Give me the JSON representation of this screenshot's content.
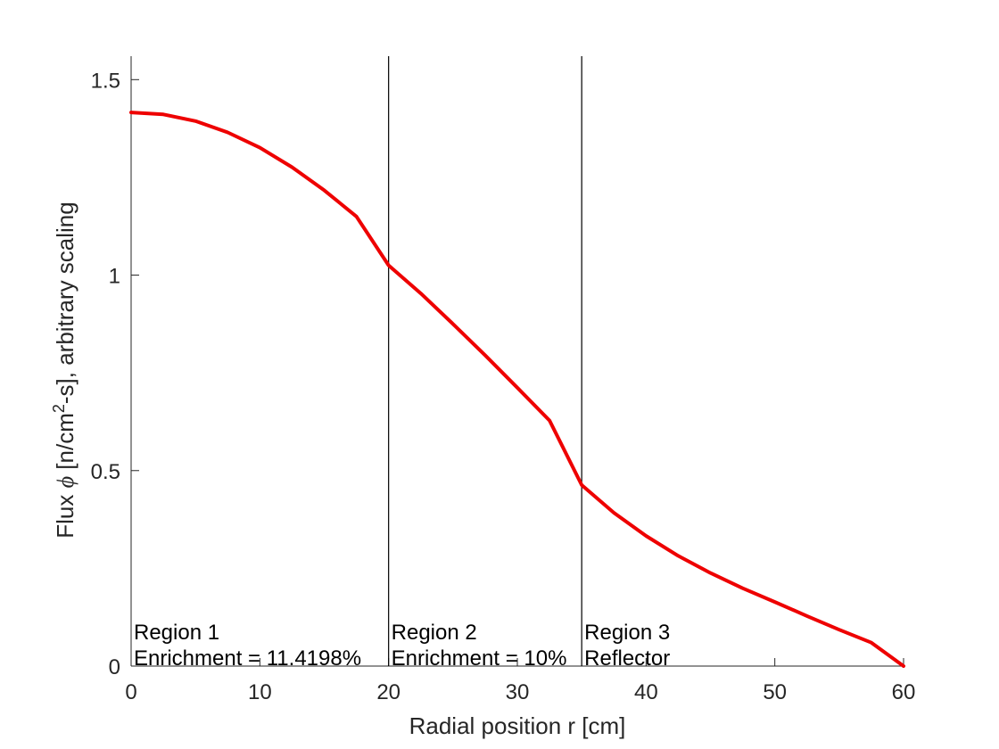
{
  "chart_data": {
    "type": "line",
    "xlabel": "Radial position r [cm]",
    "ylabel_parts": {
      "pre": "Flux ",
      "symbol": "ϕ",
      "mid": " [n/cm",
      "sup": "2",
      "post": "-s], arbitrary scaling"
    },
    "xlim": [
      0,
      60
    ],
    "ylim": [
      0,
      1.56
    ],
    "x_ticks": [
      0,
      10,
      20,
      30,
      40,
      50,
      60
    ],
    "x_tick_labels": [
      "0",
      "10",
      "20",
      "30",
      "40",
      "50",
      "60"
    ],
    "y_ticks": [
      0,
      0.5,
      1,
      1.5
    ],
    "y_tick_labels": [
      "0",
      "0.5",
      "1",
      "1.5"
    ],
    "grid": false,
    "series": [
      {
        "color": "#ee0000",
        "points": [
          [
            0,
            1.416
          ],
          [
            2.5,
            1.411
          ],
          [
            5,
            1.394
          ],
          [
            7.5,
            1.365
          ],
          [
            10,
            1.326
          ],
          [
            12.5,
            1.276
          ],
          [
            15,
            1.217
          ],
          [
            17.5,
            1.15
          ],
          [
            20,
            1.025
          ],
          [
            22.5,
            0.953
          ],
          [
            25,
            0.875
          ],
          [
            27.5,
            0.795
          ],
          [
            30,
            0.712
          ],
          [
            32.5,
            0.628
          ],
          [
            35,
            0.463
          ],
          [
            37.5,
            0.392
          ],
          [
            40,
            0.333
          ],
          [
            42.5,
            0.282
          ],
          [
            45,
            0.238
          ],
          [
            47.5,
            0.199
          ],
          [
            50,
            0.164
          ],
          [
            52.5,
            0.128
          ],
          [
            55,
            0.093
          ],
          [
            57.5,
            0.06
          ],
          [
            60,
            0.0
          ]
        ]
      }
    ],
    "region_boundaries": [
      20,
      35
    ],
    "regions": [
      {
        "x": 0,
        "name": "Region 1",
        "detail": "Enrichment = 11.4198%"
      },
      {
        "x": 20,
        "name": "Region 2",
        "detail": "Enrichment = 10%"
      },
      {
        "x": 35,
        "name": "Region 3",
        "detail": "Reflector"
      }
    ],
    "colors": {
      "axis": "#262626",
      "curve": "#ee0000",
      "boundary": "#000000"
    }
  }
}
